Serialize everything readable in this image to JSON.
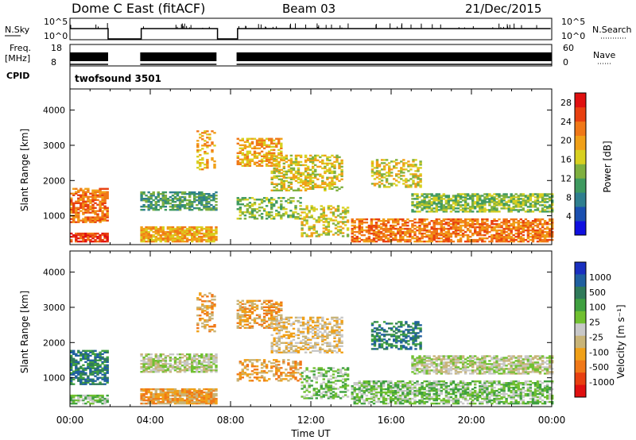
{
  "header": {
    "station": "Dome C East (fitACF)",
    "beam": "Beam 03",
    "date": "21/Dec/2015"
  },
  "params": {
    "nsky_label": "N.Sky",
    "nsearch_label": "N.Search",
    "freq_label": "Freq.",
    "freq_unit": "[MHz]",
    "nave_label": "Nave",
    "cpid_label": "CPID",
    "cpid_value": "twofsound 3501",
    "nsky_ticks": [
      "10^5",
      "10^0"
    ],
    "nsearch_ticks": [
      "10^5",
      "10^0"
    ],
    "freq_ticks": [
      "18",
      "8"
    ],
    "nave_ticks": [
      "60",
      "0"
    ]
  },
  "colors": {
    "power_scale": [
      "#1010e0",
      "#1a4fb0",
      "#2f7f8f",
      "#3f9a60",
      "#7fb040",
      "#d8d020",
      "#f0a018",
      "#f07818",
      "#e84010",
      "#e01010"
    ],
    "velocity_scale": [
      "#1a30c0",
      "#2060a0",
      "#2f7a5a",
      "#3fa040",
      "#70c030",
      "#c8c8c8",
      "#c8b478",
      "#f0a018",
      "#f07818",
      "#e84010",
      "#e01010"
    ]
  },
  "chart_data": [
    {
      "type": "heatmap",
      "title": "",
      "xlabel": "Time UT",
      "ylabel": "Slant Range [km]",
      "x_ticks": [
        "00:00",
        "04:00",
        "08:00",
        "12:00",
        "16:00",
        "20:00",
        "00:00"
      ],
      "y_ticks": [
        "1000",
        "2000",
        "3000",
        "4000"
      ],
      "xlim": [
        0,
        24
      ],
      "ylim": [
        180,
        4600
      ],
      "colorbar": {
        "label": "Power [dB]",
        "ticks": [
          "4",
          "8",
          "12",
          "16",
          "20",
          "24",
          "28"
        ],
        "range": [
          0,
          30
        ]
      },
      "data_gaps_hours": [
        [
          1.9,
          3.5
        ],
        [
          7.3,
          8.3
        ]
      ]
    },
    {
      "type": "heatmap",
      "title": "",
      "xlabel": "Time UT",
      "ylabel": "Slant Range [km]",
      "x_ticks": [
        "00:00",
        "04:00",
        "08:00",
        "12:00",
        "16:00",
        "20:00",
        "00:00"
      ],
      "y_ticks": [
        "1000",
        "2000",
        "3000",
        "4000"
      ],
      "xlim": [
        0,
        24
      ],
      "ylim": [
        180,
        4600
      ],
      "colorbar": {
        "label": "Velocity [m s⁻¹]",
        "ticks": [
          "1000",
          "500",
          "100",
          "25",
          "-25",
          "-100",
          "-500",
          "-1000"
        ]
      },
      "data_gaps_hours": [
        [
          1.9,
          3.5
        ],
        [
          7.3,
          8.3
        ]
      ]
    }
  ]
}
